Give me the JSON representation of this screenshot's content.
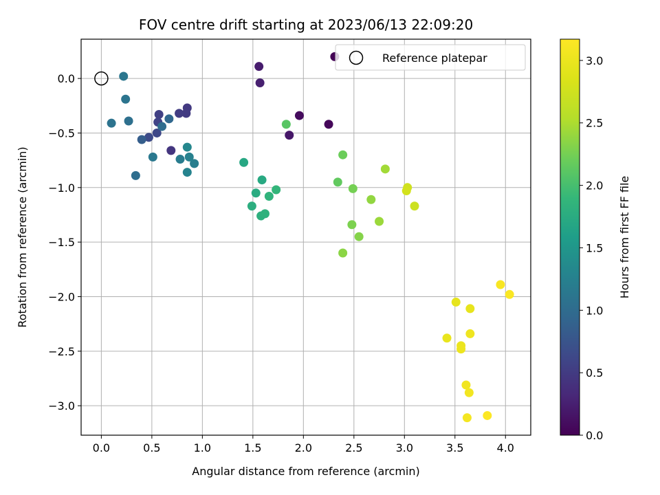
{
  "chart_data": {
    "type": "scatter",
    "title": "FOV centre drift starting at 2023/06/13 22:09:20",
    "xlabel": "Angular distance from reference (arcmin)",
    "ylabel": "Rotation from reference (arcmin)",
    "xlim": [
      -0.2,
      4.25
    ],
    "ylim": [
      -3.27,
      0.36
    ],
    "xticks": [
      0.0,
      0.5,
      1.0,
      1.5,
      2.0,
      2.5,
      3.0,
      3.5,
      4.0
    ],
    "xtick_labels": [
      "0.0",
      "0.5",
      "1.0",
      "1.5",
      "2.0",
      "2.5",
      "3.0",
      "3.5",
      "4.0"
    ],
    "yticks": [
      0.0,
      -0.5,
      -1.0,
      -1.5,
      -2.0,
      -2.5,
      -3.0
    ],
    "ytick_labels": [
      "0.0",
      "−0.5",
      "−1.0",
      "−1.5",
      "−2.0",
      "−2.5",
      "−3.0"
    ],
    "grid": true,
    "legend": {
      "position": "top-right",
      "label": "Reference platepar"
    },
    "reference_point": {
      "x": 0.0,
      "y": 0.0
    },
    "colorbar": {
      "label": "Hours from first FF file",
      "colormap": "viridis",
      "range": [
        0.0,
        3.17
      ],
      "ticks": [
        0.0,
        0.5,
        1.0,
        1.5,
        2.0,
        2.5,
        3.0
      ],
      "tick_labels": [
        "0.0",
        "0.5",
        "1.0",
        "1.5",
        "2.0",
        "2.5",
        "3.0"
      ]
    },
    "points": [
      {
        "x": 2.31,
        "y": 0.2,
        "t": 0.02
      },
      {
        "x": 2.25,
        "y": -0.42,
        "t": 0.05
      },
      {
        "x": 1.96,
        "y": -0.34,
        "t": 0.08
      },
      {
        "x": 1.86,
        "y": -0.52,
        "t": 0.18
      },
      {
        "x": 1.56,
        "y": 0.11,
        "t": 0.22
      },
      {
        "x": 1.57,
        "y": -0.04,
        "t": 0.25
      },
      {
        "x": 0.69,
        "y": -0.66,
        "t": 0.45
      },
      {
        "x": 0.85,
        "y": -0.27,
        "t": 0.48
      },
      {
        "x": 0.84,
        "y": -0.32,
        "t": 0.5
      },
      {
        "x": 0.77,
        "y": -0.32,
        "t": 0.52
      },
      {
        "x": 0.57,
        "y": -0.33,
        "t": 0.55
      },
      {
        "x": 0.56,
        "y": -0.4,
        "t": 0.58
      },
      {
        "x": 0.55,
        "y": -0.5,
        "t": 0.62
      },
      {
        "x": 0.47,
        "y": -0.54,
        "t": 0.65
      },
      {
        "x": 0.4,
        "y": -0.56,
        "t": 0.85
      },
      {
        "x": 0.67,
        "y": -0.37,
        "t": 0.95
      },
      {
        "x": 0.6,
        "y": -0.44,
        "t": 1.0
      },
      {
        "x": 0.34,
        "y": -0.89,
        "t": 1.02
      },
      {
        "x": 0.27,
        "y": -0.39,
        "t": 1.05
      },
      {
        "x": 0.1,
        "y": -0.41,
        "t": 1.08
      },
      {
        "x": 0.24,
        "y": -0.19,
        "t": 1.1
      },
      {
        "x": 0.22,
        "y": 0.02,
        "t": 1.12
      },
      {
        "x": 0.51,
        "y": -0.72,
        "t": 1.15
      },
      {
        "x": 0.78,
        "y": -0.74,
        "t": 1.2
      },
      {
        "x": 0.92,
        "y": -0.78,
        "t": 1.22
      },
      {
        "x": 0.87,
        "y": -0.72,
        "t": 1.25
      },
      {
        "x": 0.85,
        "y": -0.86,
        "t": 1.28
      },
      {
        "x": 0.85,
        "y": -0.63,
        "t": 1.32
      },
      {
        "x": 1.41,
        "y": -0.77,
        "t": 1.7
      },
      {
        "x": 1.59,
        "y": -0.93,
        "t": 1.72
      },
      {
        "x": 1.53,
        "y": -1.05,
        "t": 1.75
      },
      {
        "x": 1.49,
        "y": -1.17,
        "t": 1.78
      },
      {
        "x": 1.58,
        "y": -1.26,
        "t": 1.8
      },
      {
        "x": 1.62,
        "y": -1.24,
        "t": 1.82
      },
      {
        "x": 1.66,
        "y": -1.08,
        "t": 1.85
      },
      {
        "x": 1.73,
        "y": -1.02,
        "t": 1.88
      },
      {
        "x": 1.83,
        "y": -0.42,
        "t": 2.1
      },
      {
        "x": 2.34,
        "y": -0.95,
        "t": 2.15
      },
      {
        "x": 2.39,
        "y": -0.7,
        "t": 2.2
      },
      {
        "x": 2.49,
        "y": -1.01,
        "t": 2.25
      },
      {
        "x": 2.48,
        "y": -1.34,
        "t": 2.28
      },
      {
        "x": 2.55,
        "y": -1.45,
        "t": 2.32
      },
      {
        "x": 2.39,
        "y": -1.6,
        "t": 2.35
      },
      {
        "x": 2.67,
        "y": -1.11,
        "t": 2.38
      },
      {
        "x": 2.75,
        "y": -1.31,
        "t": 2.42
      },
      {
        "x": 2.81,
        "y": -0.83,
        "t": 2.45
      },
      {
        "x": 3.03,
        "y": -1.0,
        "t": 2.75
      },
      {
        "x": 3.02,
        "y": -1.03,
        "t": 2.78
      },
      {
        "x": 3.1,
        "y": -1.17,
        "t": 2.72
      },
      {
        "x": 3.51,
        "y": -2.05,
        "t": 2.95
      },
      {
        "x": 3.65,
        "y": -2.11,
        "t": 2.96
      },
      {
        "x": 3.95,
        "y": -1.89,
        "t": 3.12
      },
      {
        "x": 4.04,
        "y": -1.98,
        "t": 3.14
      },
      {
        "x": 3.42,
        "y": -2.38,
        "t": 2.98
      },
      {
        "x": 3.56,
        "y": -2.45,
        "t": 3.0
      },
      {
        "x": 3.56,
        "y": -2.48,
        "t": 3.02
      },
      {
        "x": 3.65,
        "y": -2.34,
        "t": 3.04
      },
      {
        "x": 3.61,
        "y": -2.81,
        "t": 3.05
      },
      {
        "x": 3.64,
        "y": -2.88,
        "t": 3.06
      },
      {
        "x": 3.62,
        "y": -3.11,
        "t": 3.08
      },
      {
        "x": 3.82,
        "y": -3.09,
        "t": 3.16
      }
    ]
  }
}
